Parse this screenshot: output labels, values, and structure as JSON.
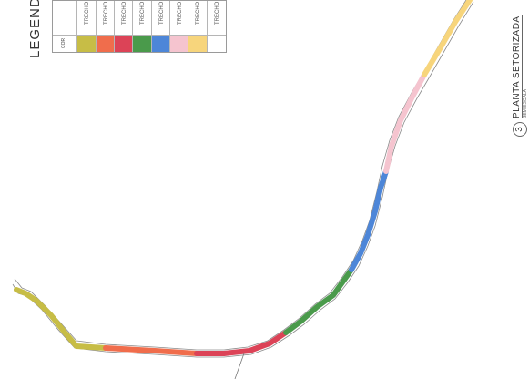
{
  "legend": {
    "title": "LEGEND",
    "header": {
      "label": "TRECHO",
      "swatch_label": "COR"
    },
    "items": [
      {
        "label": "TRECHO",
        "color": "#c7bd46"
      },
      {
        "label": "TRECHO",
        "color": "#f06d4c"
      },
      {
        "label": "TRECHO",
        "color": "#dc4357"
      },
      {
        "label": "TRECHO",
        "color": "#4a9a4b"
      },
      {
        "label": "TRECHO",
        "color": "#4d86d8"
      },
      {
        "label": "TRECHO",
        "color": "#f5c4cf"
      },
      {
        "label": "TRECHO",
        "color": "#f7d57c"
      },
      {
        "label": "TRECHO",
        "color": "#ffffff"
      }
    ]
  },
  "plan": {
    "number": "3",
    "title": "PLANTA SETORIZADA",
    "scale": "SEM ESCALA"
  },
  "colors": {
    "segment_olive": "#c7bd46",
    "segment_orange": "#f06d4c",
    "segment_red": "#dc4357",
    "segment_green": "#4a9a4b",
    "segment_blue": "#4d86d8",
    "segment_pink": "#f5c4cf",
    "segment_yellow": "#f7d57c"
  }
}
